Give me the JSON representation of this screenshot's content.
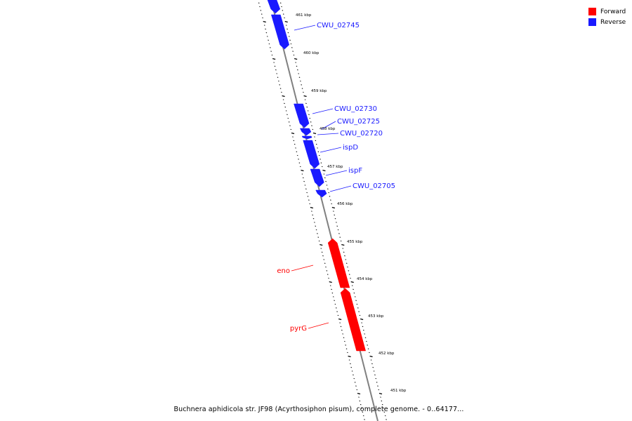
{
  "legend": {
    "forward_label": "Forward",
    "reverse_label": "Reverse"
  },
  "colors": {
    "forward": "#ff0000",
    "reverse": "#1a1aff",
    "backbone": "#808080",
    "ticks": "#000000"
  },
  "caption": "Buchnera aphidicola str. JF98 (Acyrthosiphon pisum), complete genome. - 0..64177...",
  "axis": {
    "unit": "kbp",
    "labels": [
      "461 kbp",
      "460 kbp",
      "459 kbp",
      "458 kbp",
      "457 kbp",
      "456 kbp",
      "455 kbp",
      "454 kbp",
      "453 kbp",
      "452 kbp",
      "451 kbp"
    ]
  },
  "genes": [
    {
      "name": "",
      "strand": "reverse"
    },
    {
      "name": "CWU_02745",
      "strand": "reverse"
    },
    {
      "name": "CWU_02730",
      "strand": "reverse"
    },
    {
      "name": "CWU_02725",
      "strand": "reverse"
    },
    {
      "name": "CWU_02720",
      "strand": "reverse"
    },
    {
      "name": "ispD",
      "strand": "reverse"
    },
    {
      "name": "ispF",
      "strand": "reverse"
    },
    {
      "name": "CWU_02705",
      "strand": "reverse"
    },
    {
      "name": "eno",
      "strand": "forward"
    },
    {
      "name": "pyrG",
      "strand": "forward"
    }
  ]
}
